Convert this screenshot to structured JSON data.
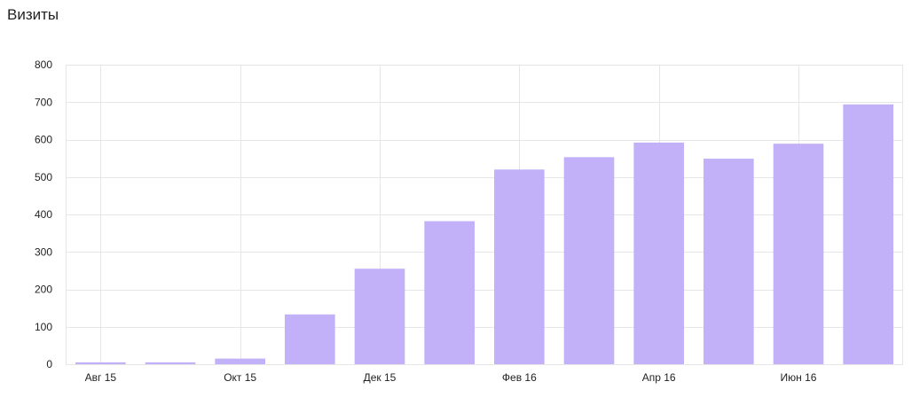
{
  "chart_data": {
    "type": "bar",
    "title": "Визиты",
    "xlabel": "",
    "ylabel": "",
    "ylim": [
      0,
      800
    ],
    "y_ticks": [
      0,
      100,
      200,
      300,
      400,
      500,
      600,
      700,
      800
    ],
    "x_tick_labels": [
      "Авг 15",
      "Окт 15",
      "Дек 15",
      "Фев 16",
      "Апр 16",
      "Июн 16"
    ],
    "categories": [
      "Авг 15",
      "Сен 15",
      "Окт 15",
      "Ноя 15",
      "Дек 15",
      "Янв 16",
      "Фев 16",
      "Мар 16",
      "Апр 16",
      "Май 16",
      "Июн 16",
      "Июл 16"
    ],
    "values": [
      5,
      5,
      15,
      133,
      255,
      382,
      520,
      553,
      592,
      549,
      589,
      694
    ],
    "grid": true,
    "legend": "none",
    "colors": {
      "bar": "#c2b0f8",
      "grid": "#e6e6e6",
      "text": "#222222"
    }
  }
}
